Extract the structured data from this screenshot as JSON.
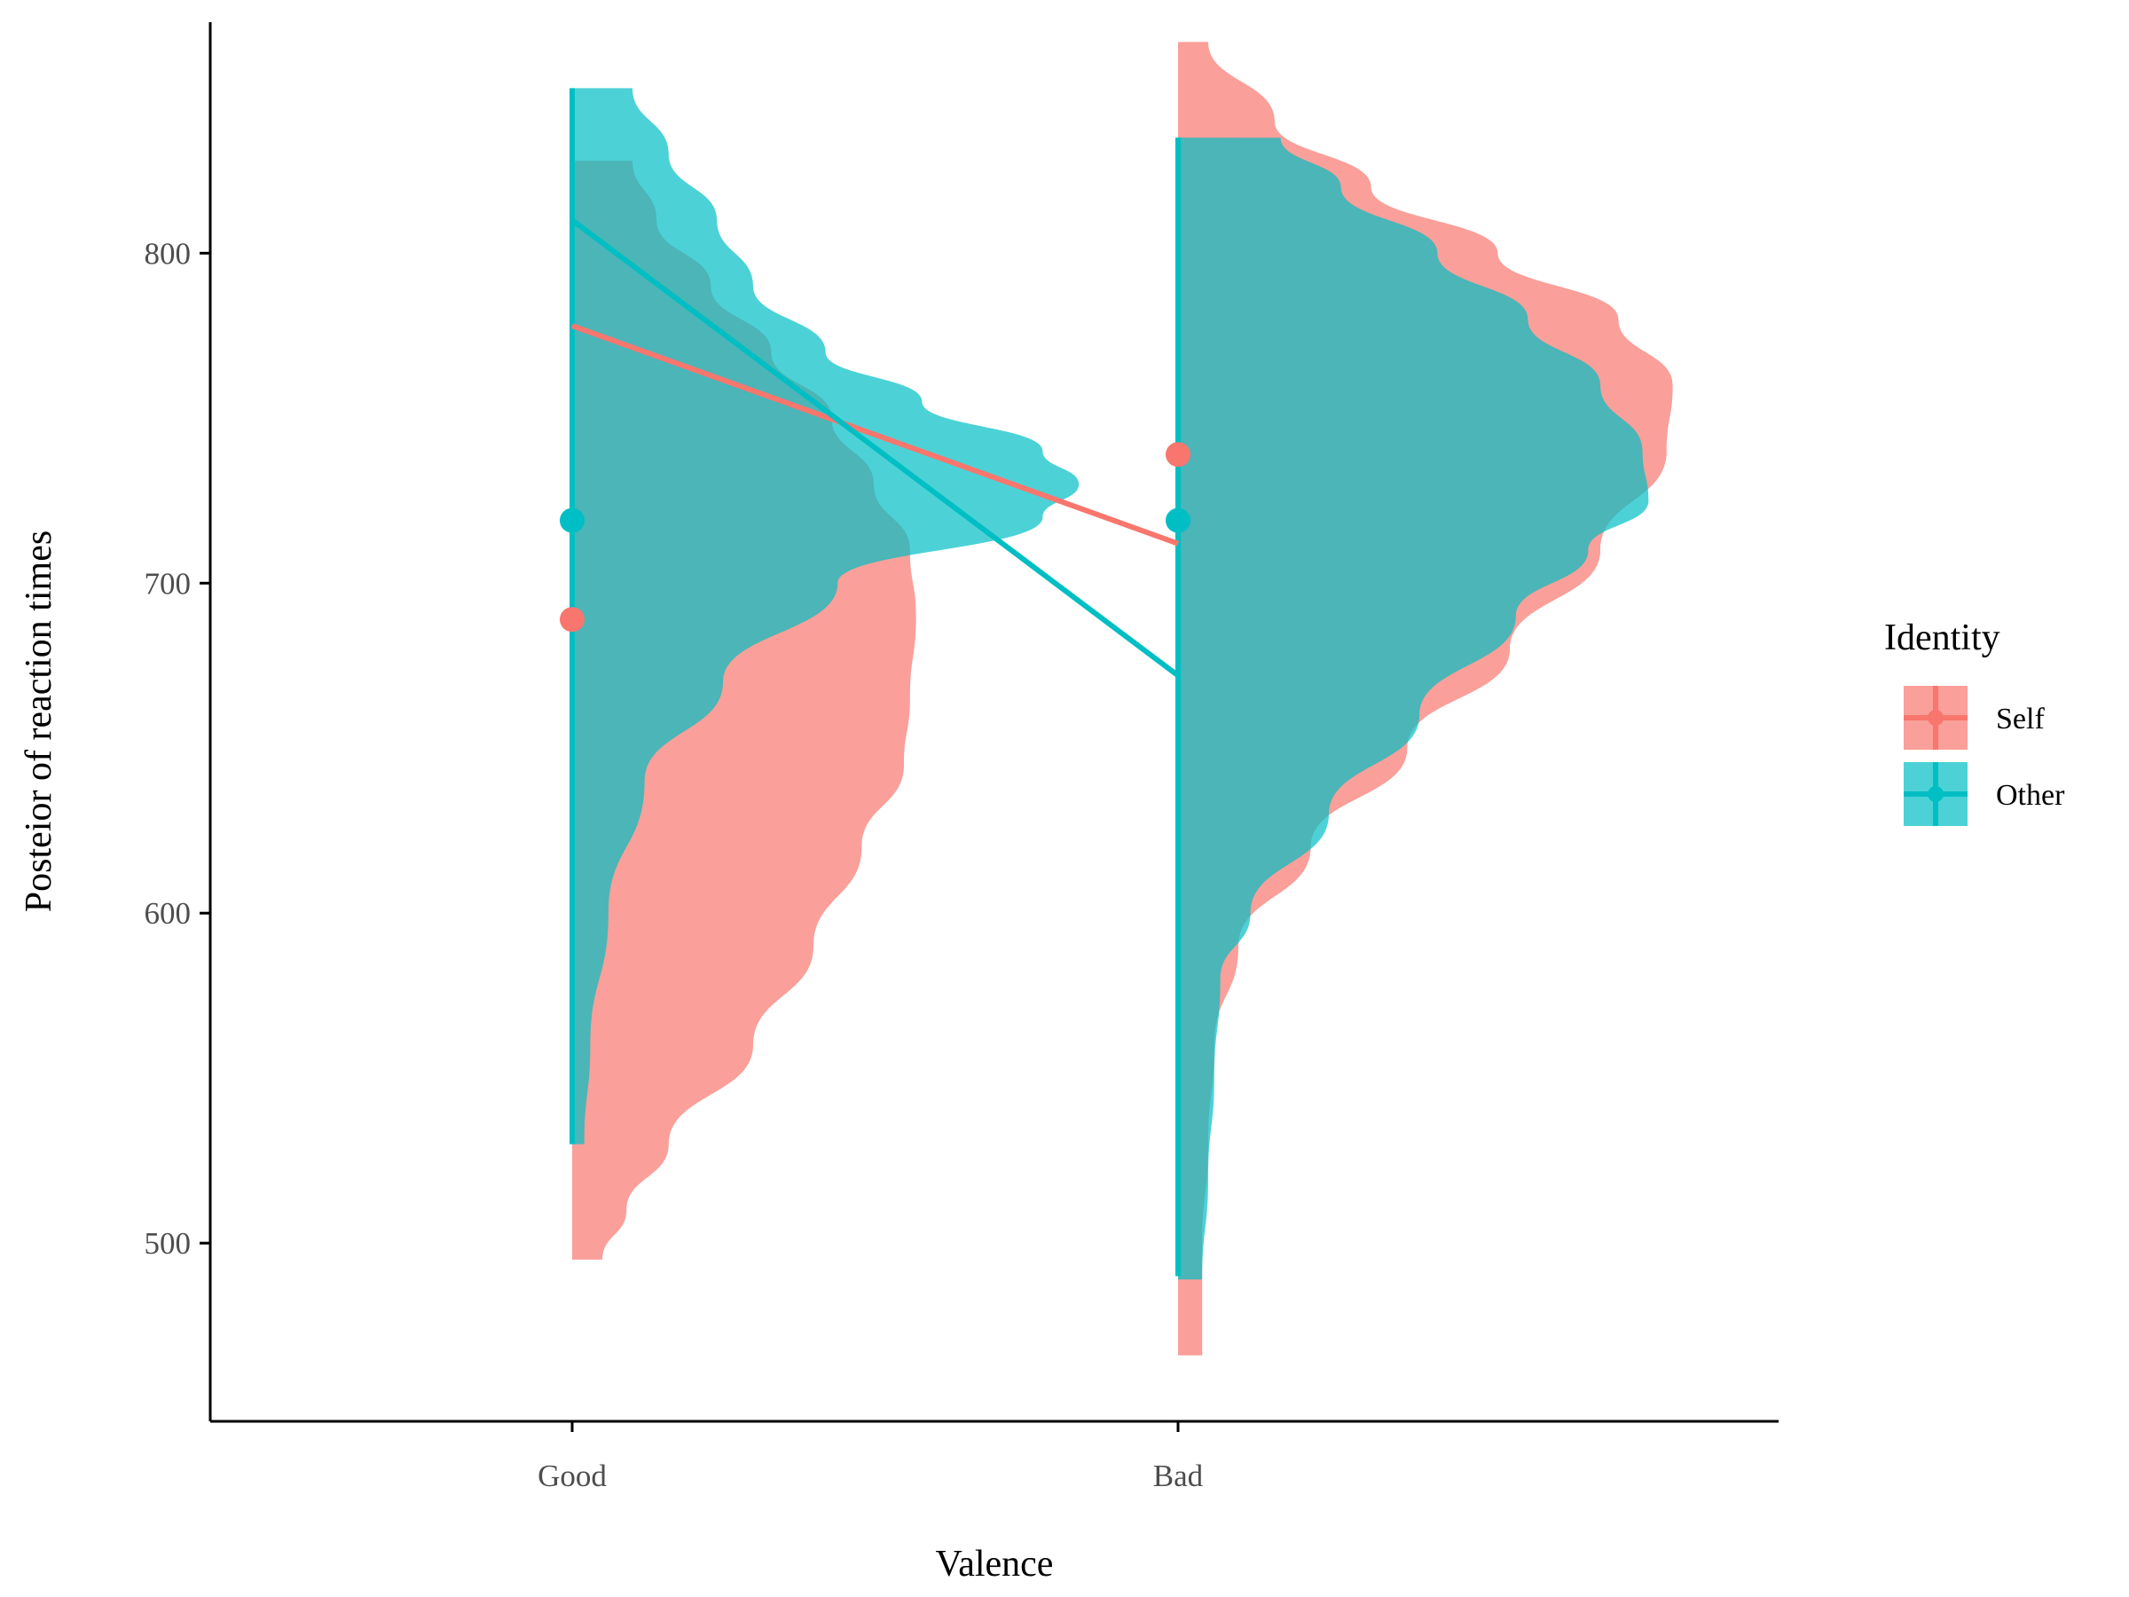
{
  "chart_data": {
    "type": "violin",
    "xlabel": "Valence",
    "ylabel": "Posteior of reaction times",
    "categories": [
      "Good",
      "Bad"
    ],
    "yticks": [
      500,
      600,
      700,
      800
    ],
    "ylim": [
      446,
      870
    ],
    "legend": {
      "title": "Identity",
      "position": "right",
      "entries": [
        {
          "label": "Self",
          "color": "#F8766D"
        },
        {
          "label": "Other",
          "color": "#00BFC4"
        }
      ]
    },
    "series": [
      {
        "name": "Self",
        "color": "#F8766D",
        "fill_opacity": 0.7,
        "means": [
          689,
          739
        ],
        "intervals": [
          [
            612,
            765
          ],
          [
            657,
            780
          ]
        ],
        "line_y": [
          778,
          712
        ],
        "violins": [
          {
            "category": "Good",
            "range": [
              495,
              828
            ],
            "half_width": [
              [
                495,
                0.05
              ],
              [
                510,
                0.09
              ],
              [
                530,
                0.16
              ],
              [
                560,
                0.3
              ],
              [
                590,
                0.4
              ],
              [
                620,
                0.48
              ],
              [
                645,
                0.55
              ],
              [
                665,
                0.56
              ],
              [
                690,
                0.57
              ],
              [
                710,
                0.56
              ],
              [
                730,
                0.5
              ],
              [
                750,
                0.43
              ],
              [
                770,
                0.33
              ],
              [
                790,
                0.23
              ],
              [
                810,
                0.14
              ],
              [
                828,
                0.1
              ]
            ]
          },
          {
            "category": "Bad",
            "range": [
              466,
              864
            ],
            "half_width": [
              [
                466,
                0.04
              ],
              [
                500,
                0.04
              ],
              [
                530,
                0.05
              ],
              [
                560,
                0.06
              ],
              [
                590,
                0.1
              ],
              [
                620,
                0.22
              ],
              [
                650,
                0.38
              ],
              [
                680,
                0.55
              ],
              [
                710,
                0.7
              ],
              [
                740,
                0.81
              ],
              [
                760,
                0.82
              ],
              [
                780,
                0.73
              ],
              [
                800,
                0.53
              ],
              [
                820,
                0.32
              ],
              [
                840,
                0.16
              ],
              [
                864,
                0.05
              ]
            ]
          }
        ]
      },
      {
        "name": "Other",
        "color": "#00BFC4",
        "fill_opacity": 0.7,
        "means": [
          719,
          719
        ],
        "intervals": [
          [
            530,
            850
          ],
          [
            490,
            835
          ]
        ],
        "line_y": [
          810,
          672
        ],
        "violins": [
          {
            "category": "Good",
            "range": [
              530,
              850
            ],
            "half_width": [
              [
                530,
                0.02
              ],
              [
                560,
                0.03
              ],
              [
                600,
                0.06
              ],
              [
                640,
                0.12
              ],
              [
                670,
                0.25
              ],
              [
                700,
                0.44
              ],
              [
                720,
                0.78
              ],
              [
                730,
                0.84
              ],
              [
                740,
                0.78
              ],
              [
                755,
                0.58
              ],
              [
                770,
                0.42
              ],
              [
                790,
                0.3
              ],
              [
                810,
                0.24
              ],
              [
                830,
                0.16
              ],
              [
                850,
                0.1
              ]
            ]
          },
          {
            "category": "Bad",
            "range": [
              489,
              835
            ],
            "half_width": [
              [
                489,
                0.04
              ],
              [
                520,
                0.05
              ],
              [
                550,
                0.06
              ],
              [
                580,
                0.07
              ],
              [
                600,
                0.12
              ],
              [
                630,
                0.25
              ],
              [
                660,
                0.4
              ],
              [
                690,
                0.56
              ],
              [
                710,
                0.68
              ],
              [
                725,
                0.78
              ],
              [
                740,
                0.77
              ],
              [
                760,
                0.7
              ],
              [
                780,
                0.58
              ],
              [
                800,
                0.43
              ],
              [
                820,
                0.27
              ],
              [
                835,
                0.17
              ]
            ]
          }
        ]
      }
    ]
  }
}
